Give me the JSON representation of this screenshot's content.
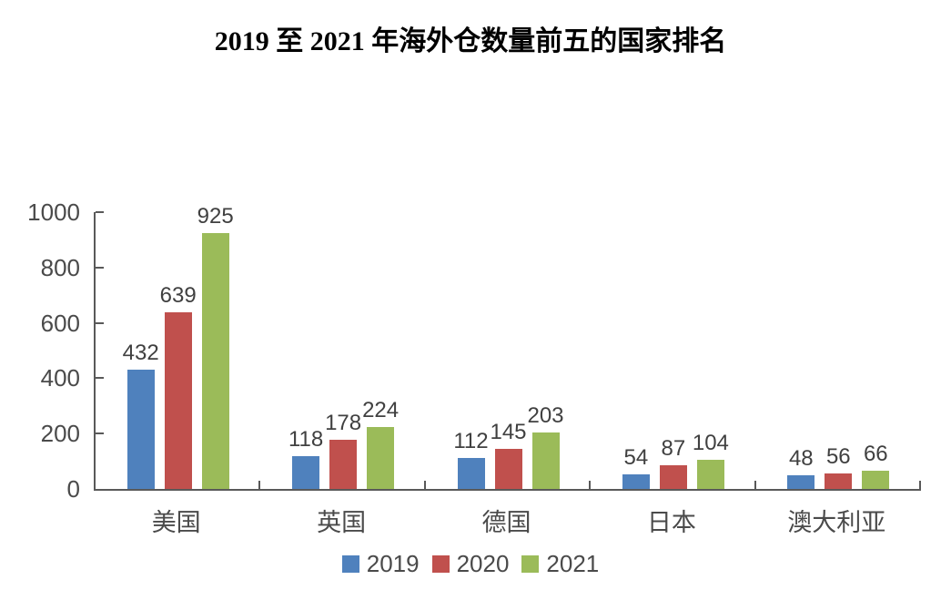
{
  "title": "2019 至 2021 年海外仓数量前五的国家排名",
  "chart_data": {
    "type": "bar",
    "title": "2019 至 2021 年海外仓数量前五的国家排名",
    "categories": [
      "美国",
      "英国",
      "德国",
      "日本",
      "澳大利亚"
    ],
    "series": [
      {
        "name": "2019",
        "color": "#4F81BD",
        "values": [
          432,
          118,
          112,
          54,
          48
        ]
      },
      {
        "name": "2020",
        "color": "#C0504D",
        "values": [
          639,
          178,
          145,
          87,
          56
        ]
      },
      {
        "name": "2021",
        "color": "#9BBB59",
        "values": [
          925,
          224,
          203,
          104,
          66
        ]
      }
    ],
    "ylim": [
      0,
      1000
    ],
    "yticks": [
      0,
      200,
      400,
      600,
      800,
      1000
    ],
    "grid": false,
    "legend_position": "bottom",
    "axis_color": "#595959",
    "text_color": "#404040",
    "data_labels": true
  }
}
